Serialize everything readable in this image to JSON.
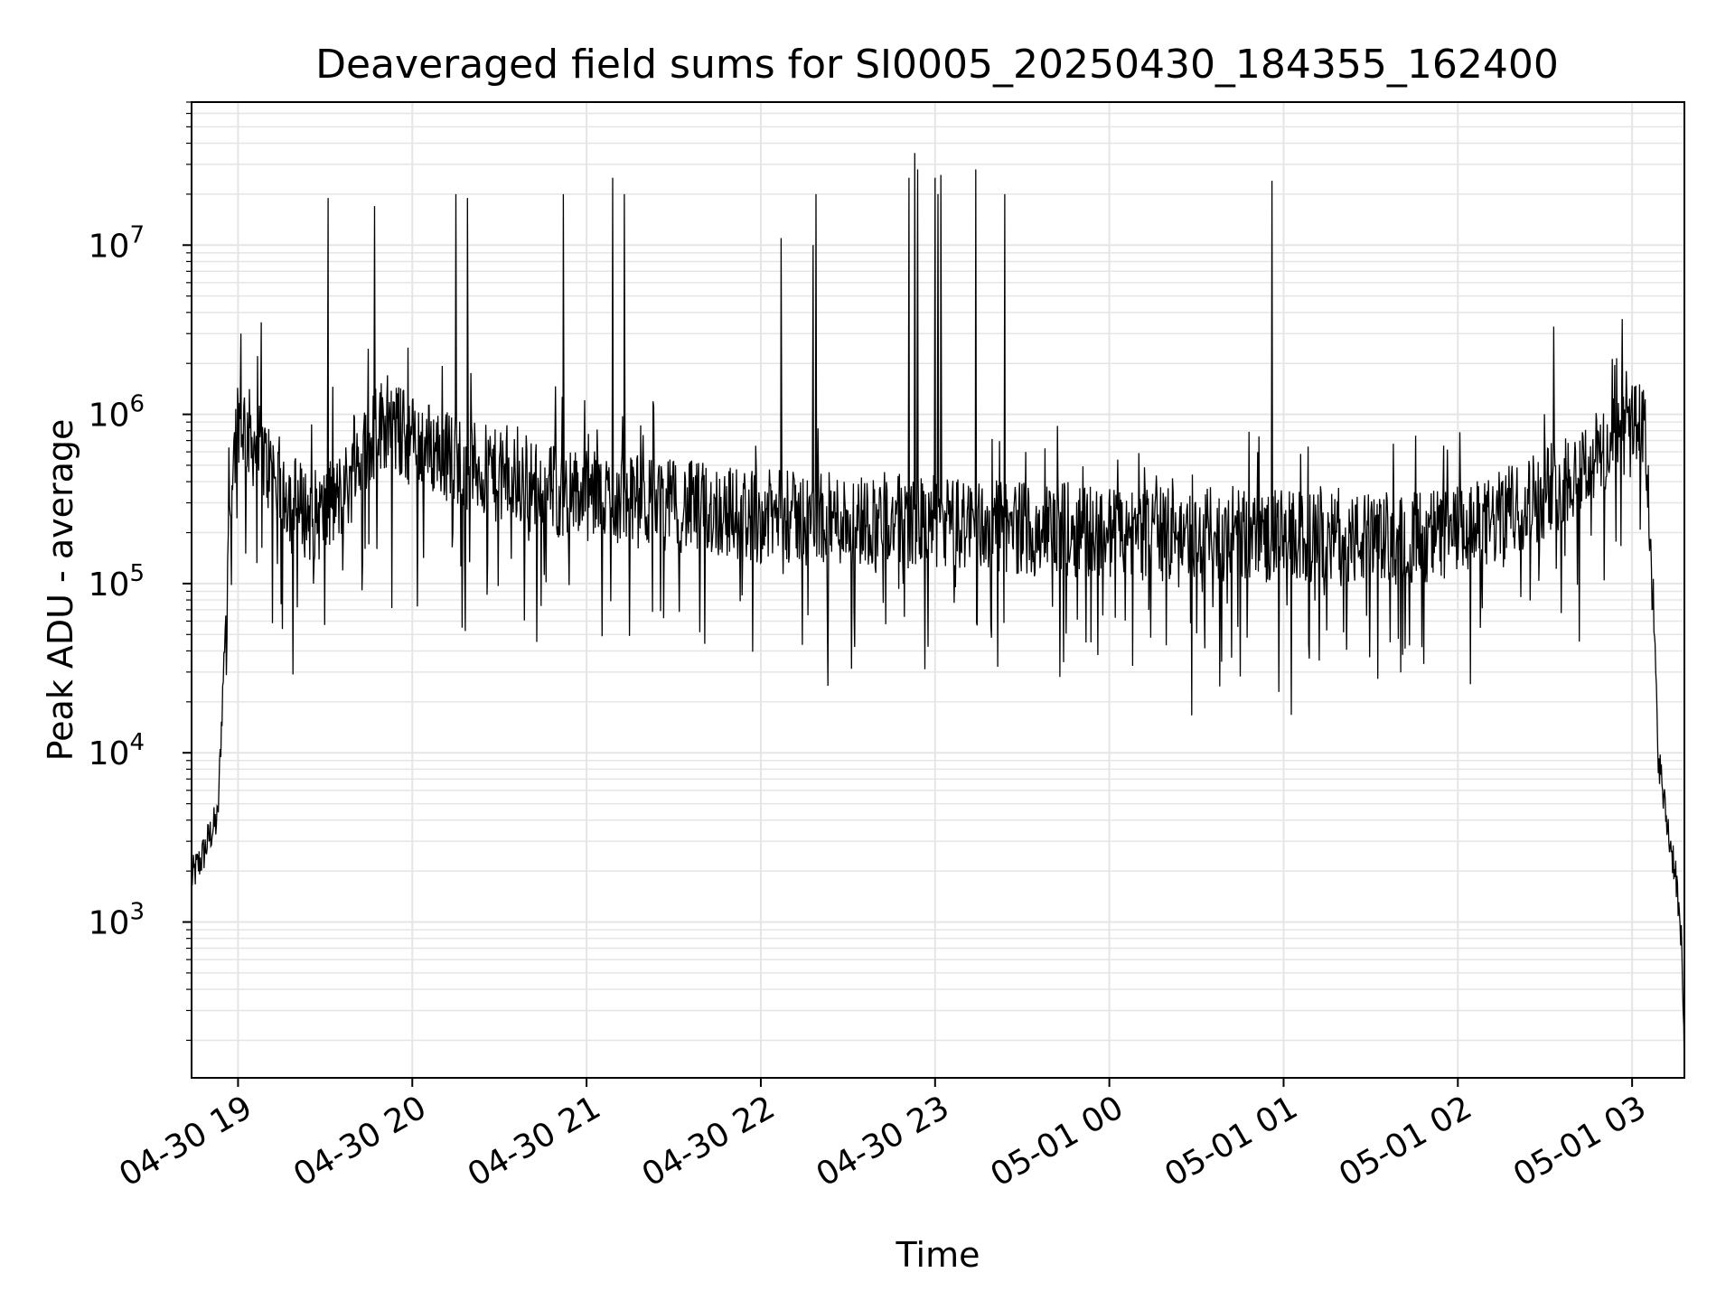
{
  "chart_data": {
    "type": "line",
    "title": "Deaveraged field sums for SI0005_20250430_184355_162400",
    "xlabel": "Time",
    "ylabel": "Peak ADU - average",
    "yscale": "log",
    "ylim": [
      120,
      70000000
    ],
    "xlim": [
      "2025-04-30 18:44",
      "2025-05-01 03:18"
    ],
    "grid": true,
    "colors": {
      "line": "#000000",
      "grid": "#e5e5e5",
      "axis": "#000000",
      "background": "#ffffff"
    },
    "x_ticks": [
      {
        "t": "2025-04-30 19:00",
        "label": "04-30 19"
      },
      {
        "t": "2025-04-30 20:00",
        "label": "04-30 20"
      },
      {
        "t": "2025-04-30 21:00",
        "label": "04-30 21"
      },
      {
        "t": "2025-04-30 22:00",
        "label": "04-30 22"
      },
      {
        "t": "2025-04-30 23:00",
        "label": "04-30 23"
      },
      {
        "t": "2025-05-01 00:00",
        "label": "05-01 00"
      },
      {
        "t": "2025-05-01 01:00",
        "label": "05-01 01"
      },
      {
        "t": "2025-05-01 02:00",
        "label": "05-01 02"
      },
      {
        "t": "2025-05-01 03:00",
        "label": "05-01 03"
      }
    ],
    "y_ticks": [
      {
        "value": 1000,
        "base": "10",
        "exp": "3"
      },
      {
        "value": 10000,
        "base": "10",
        "exp": "4"
      },
      {
        "value": 100000,
        "base": "10",
        "exp": "5"
      },
      {
        "value": 1000000,
        "base": "10",
        "exp": "6"
      },
      {
        "value": 10000000,
        "base": "10",
        "exp": "7"
      }
    ],
    "baseline": [
      [
        "2025-04-30 18:44",
        1800
      ],
      [
        "2025-04-30 18:48",
        2500
      ],
      [
        "2025-04-30 18:51",
        3500
      ],
      [
        "2025-04-30 18:53",
        4000
      ],
      [
        "2025-04-30 18:55",
        30000
      ],
      [
        "2025-04-30 18:57",
        300000
      ],
      [
        "2025-04-30 19:00",
        1000000
      ],
      [
        "2025-04-30 19:05",
        700000
      ],
      [
        "2025-04-30 19:10",
        500000
      ],
      [
        "2025-04-30 19:15",
        380000
      ],
      [
        "2025-04-30 19:20",
        300000
      ],
      [
        "2025-04-30 19:25",
        250000
      ],
      [
        "2025-04-30 19:30",
        260000
      ],
      [
        "2025-04-30 19:35",
        320000
      ],
      [
        "2025-04-30 19:40",
        450000
      ],
      [
        "2025-04-30 19:45",
        700000
      ],
      [
        "2025-04-30 19:50",
        900000
      ],
      [
        "2025-04-30 19:55",
        800000
      ],
      [
        "2025-04-30 20:00",
        700000
      ],
      [
        "2025-04-30 20:10",
        600000
      ],
      [
        "2025-04-30 20:20",
        500000
      ],
      [
        "2025-04-30 20:30",
        420000
      ],
      [
        "2025-04-30 20:40",
        380000
      ],
      [
        "2025-04-30 20:50",
        350000
      ],
      [
        "2025-04-30 21:00",
        330000
      ],
      [
        "2025-04-30 21:15",
        310000
      ],
      [
        "2025-04-30 21:30",
        290000
      ],
      [
        "2025-04-30 21:45",
        270000
      ],
      [
        "2025-04-30 22:00",
        250000
      ],
      [
        "2025-04-30 22:15",
        240000
      ],
      [
        "2025-04-30 22:30",
        240000
      ],
      [
        "2025-04-30 22:45",
        235000
      ],
      [
        "2025-04-30 23:00",
        230000
      ],
      [
        "2025-04-30 23:15",
        220000
      ],
      [
        "2025-04-30 23:30",
        215000
      ],
      [
        "2025-04-30 23:45",
        210000
      ],
      [
        "2025-05-01 00:00",
        200000
      ],
      [
        "2025-05-01 00:20",
        195000
      ],
      [
        "2025-05-01 00:40",
        195000
      ],
      [
        "2025-05-01 01:00",
        190000
      ],
      [
        "2025-05-01 01:20",
        180000
      ],
      [
        "2025-05-01 01:40",
        185000
      ],
      [
        "2025-05-01 02:00",
        200000
      ],
      [
        "2025-05-01 02:10",
        220000
      ],
      [
        "2025-05-01 02:20",
        280000
      ],
      [
        "2025-05-01 02:30",
        350000
      ],
      [
        "2025-05-01 02:40",
        450000
      ],
      [
        "2025-05-01 02:50",
        600000
      ],
      [
        "2025-05-01 03:00",
        800000
      ],
      [
        "2025-05-01 03:03",
        900000
      ],
      [
        "2025-05-01 03:05",
        600000
      ],
      [
        "2025-05-01 03:07",
        100000
      ],
      [
        "2025-05-01 03:09",
        10000
      ],
      [
        "2025-05-01 03:11",
        5000
      ],
      [
        "2025-05-01 03:13",
        3000
      ],
      [
        "2025-05-01 03:15",
        2000
      ],
      [
        "2025-05-01 03:17",
        700
      ],
      [
        "2025-05-01 03:18",
        150
      ]
    ],
    "spikes": [
      [
        "2025-04-30 19:01",
        3000000
      ],
      [
        "2025-04-30 19:08",
        3500000
      ],
      [
        "2025-04-30 19:31",
        19000000
      ],
      [
        "2025-04-30 19:47",
        17000000
      ],
      [
        "2025-04-30 20:15",
        20000000
      ],
      [
        "2025-04-30 20:19",
        19000000
      ],
      [
        "2025-04-30 20:52",
        20000000
      ],
      [
        "2025-04-30 21:09",
        25000000
      ],
      [
        "2025-04-30 21:13",
        20000000
      ],
      [
        "2025-04-30 22:07",
        11000000
      ],
      [
        "2025-04-30 22:18",
        10000000
      ],
      [
        "2025-04-30 22:19",
        20000000
      ],
      [
        "2025-04-30 22:51",
        25000000
      ],
      [
        "2025-04-30 22:53",
        35000000
      ],
      [
        "2025-04-30 22:54",
        28000000
      ],
      [
        "2025-04-30 23:00",
        25000000
      ],
      [
        "2025-04-30 23:01",
        20000000
      ],
      [
        "2025-04-30 23:02",
        26000000
      ],
      [
        "2025-04-30 23:14",
        28000000
      ],
      [
        "2025-04-30 23:24",
        20000000
      ],
      [
        "2025-05-01 00:56",
        24000000
      ],
      [
        "2025-05-01 02:33",
        3300000
      ],
      [
        "2025-05-01 02:58",
        1800000
      ]
    ]
  }
}
